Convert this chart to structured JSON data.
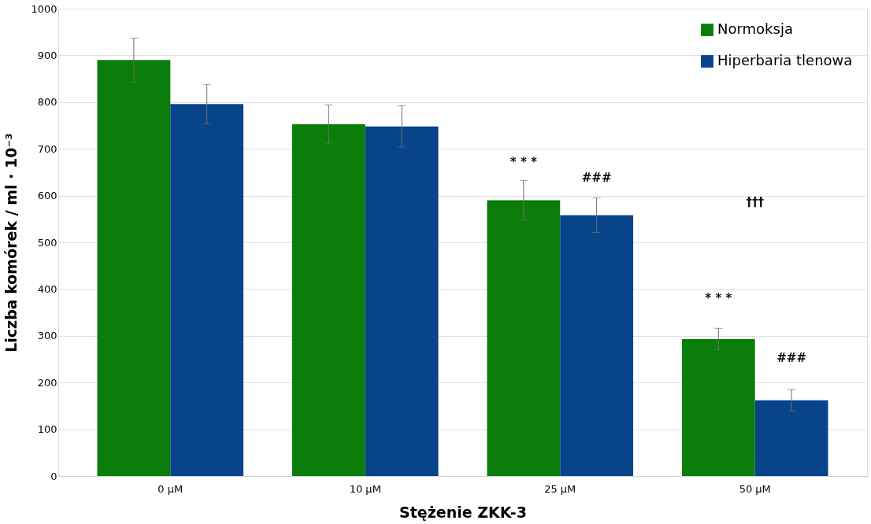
{
  "chart_data": {
    "type": "bar",
    "xlabel": "Stężenie ZKK-3",
    "ylabel": "Liczba komórek / ml · 10⁻³",
    "categories": [
      "0 µM",
      "10 µM",
      "25 µM",
      "50 µM"
    ],
    "series": [
      {
        "name": "Normoksja",
        "color": "#0a7d0a",
        "values": [
          890,
          753,
          590,
          293
        ],
        "errors": [
          47,
          41,
          42,
          23
        ]
      },
      {
        "name": "Hiperbaria tlenowa",
        "color": "#07448a",
        "values": [
          796,
          748,
          558,
          162
        ],
        "errors": [
          42,
          44,
          37,
          23
        ]
      }
    ],
    "ylim": [
      0,
      1000
    ],
    "yticks": [
      0,
      100,
      200,
      300,
      400,
      500,
      600,
      700,
      800,
      900,
      1000
    ],
    "grid": "y",
    "legend": "top right",
    "annotations": [
      "* * *",
      "###",
      "* * *",
      "###",
      "†††"
    ]
  }
}
